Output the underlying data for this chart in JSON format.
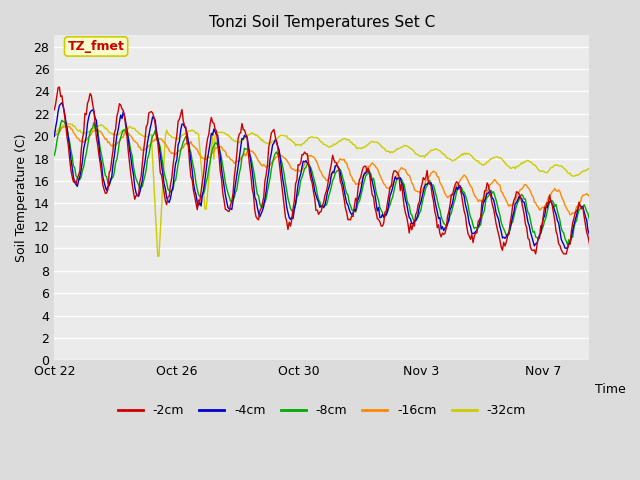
{
  "title": "Tonzi Soil Temperatures Set C",
  "xlabel": "Time",
  "ylabel": "Soil Temperature (C)",
  "ylim": [
    0,
    29
  ],
  "yticks": [
    0,
    2,
    4,
    6,
    8,
    10,
    12,
    14,
    16,
    18,
    20,
    22,
    24,
    26,
    28
  ],
  "bg_color": "#dcdcdc",
  "plot_bg_color": "#ebebeb",
  "annotation_text": "TZ_fmet",
  "annotation_bg": "#ffffcc",
  "annotation_border": "#cccc00",
  "annotation_color": "#cc0000",
  "series_colors": [
    "#cc0000",
    "#0000cc",
    "#00aa00",
    "#ff8800",
    "#cccc00"
  ],
  "series_labels": [
    "-2cm",
    "-4cm",
    "-8cm",
    "-16cm",
    "-32cm"
  ],
  "xtick_labels": [
    "Oct 22",
    "Oct 26",
    "Oct 30",
    "Nov 3",
    "Nov 7"
  ],
  "xtick_positions": [
    0,
    4,
    8,
    12,
    16
  ],
  "xlim": [
    0,
    17.5
  ]
}
